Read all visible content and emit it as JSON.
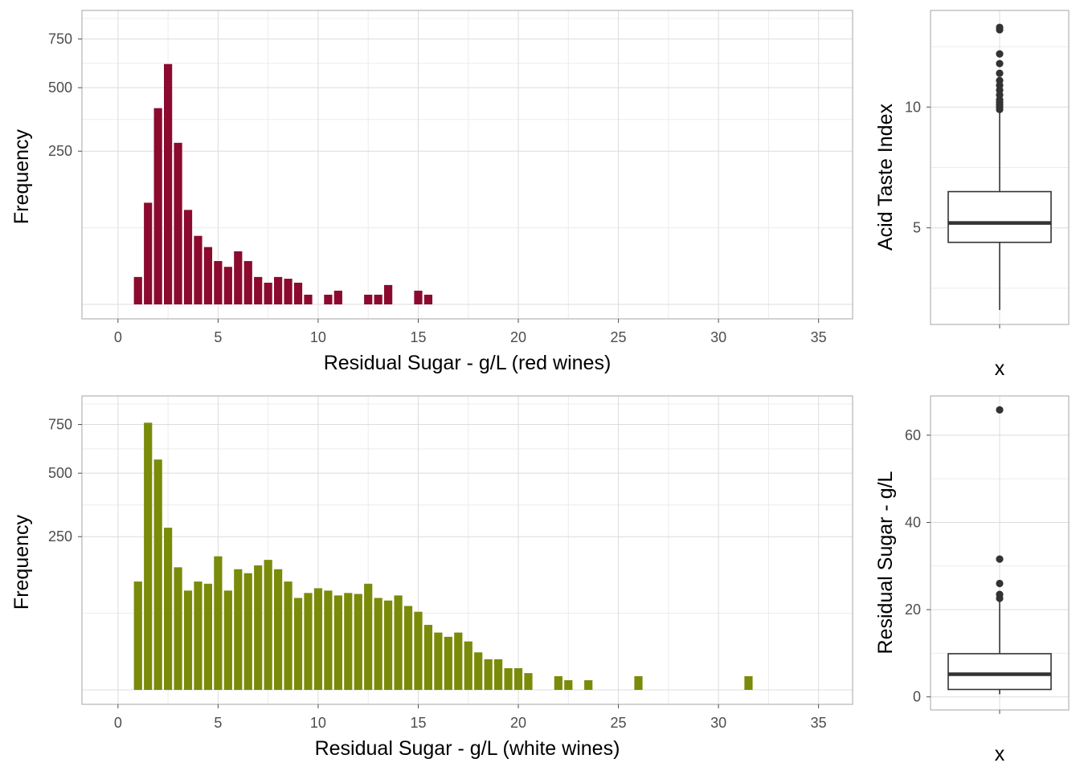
{
  "chart_data": [
    {
      "type": "bar",
      "panel": "top-left histogram",
      "xlabel": "Residual Sugar - g/L (red wines)",
      "ylabel": "Frequency",
      "y_scale": "sqrt",
      "xlim": [
        -1.8,
        36.7
      ],
      "ylim": [
        0,
        900
      ],
      "x_ticks": [
        0,
        5,
        10,
        15,
        20,
        25,
        30,
        35
      ],
      "y_ticks": [
        250,
        500,
        750
      ],
      "grid": true,
      "color": "#8B0A2E",
      "x": [
        1.0,
        1.5,
        2.0,
        2.5,
        3.0,
        3.5,
        4.0,
        4.5,
        5.0,
        5.5,
        6.0,
        6.5,
        7.0,
        7.5,
        8.0,
        8.5,
        9.0,
        9.5,
        10.5,
        11.0,
        12.5,
        13.0,
        13.5,
        15.0,
        15.5
      ],
      "values": [
        8,
        110,
        410,
        615,
        278,
        95,
        50,
        35,
        20,
        15,
        30,
        20,
        8,
        5,
        8,
        7,
        5,
        1,
        1,
        2,
        1,
        1,
        4,
        2,
        1
      ]
    },
    {
      "type": "bar",
      "panel": "bottom-left histogram",
      "xlabel": "Residual Sugar - g/L (white wines)",
      "ylabel": "Frequency",
      "y_scale": "sqrt",
      "xlim": [
        -1.8,
        36.7
      ],
      "ylim": [
        0,
        900
      ],
      "x_ticks": [
        0,
        5,
        10,
        15,
        20,
        25,
        30,
        35
      ],
      "y_ticks": [
        250,
        500,
        750
      ],
      "grid": true,
      "color": "#7A8B0A",
      "x": [
        1.0,
        1.5,
        2.0,
        2.5,
        3.0,
        3.5,
        4.0,
        4.5,
        5.0,
        5.5,
        6.0,
        6.5,
        7.0,
        7.5,
        8.0,
        8.5,
        9.0,
        9.5,
        10.0,
        10.5,
        11.0,
        11.5,
        12.0,
        12.5,
        13.0,
        13.5,
        14.0,
        14.5,
        15.0,
        15.5,
        16.0,
        16.5,
        17.0,
        17.5,
        18.0,
        18.5,
        19.0,
        19.5,
        20.0,
        20.5,
        22.0,
        22.5,
        23.5,
        26.0,
        31.5
      ],
      "values": [
        125,
        760,
        565,
        280,
        160,
        105,
        125,
        120,
        190,
        105,
        155,
        145,
        165,
        180,
        155,
        125,
        90,
        100,
        110,
        105,
        95,
        100,
        98,
        120,
        90,
        85,
        95,
        75,
        65,
        45,
        35,
        30,
        35,
        25,
        15,
        10,
        10,
        5,
        5,
        3,
        2,
        1,
        1,
        2,
        2
      ]
    },
    {
      "type": "boxplot",
      "panel": "top-right boxplot",
      "xlabel": "x",
      "ylabel": "Acid Taste Index",
      "ylim": [
        1,
        14
      ],
      "y_ticks": [
        5,
        10
      ],
      "grid": true,
      "lower_whisker": 1.6,
      "q1": 4.4,
      "median": 5.2,
      "q3": 6.5,
      "upper_whisker": 9.8,
      "outliers": [
        9.9,
        10.0,
        10.1,
        10.2,
        10.3,
        10.5,
        10.7,
        10.9,
        11.1,
        11.4,
        11.8,
        12.2,
        13.2,
        13.3
      ]
    },
    {
      "type": "boxplot",
      "panel": "bottom-right boxplot",
      "xlabel": "x",
      "ylabel": "Residual Sugar - g/L",
      "ylim": [
        -3,
        69
      ],
      "y_ticks": [
        0,
        20,
        40,
        60
      ],
      "grid": true,
      "lower_whisker": 0.6,
      "q1": 1.7,
      "median": 5.2,
      "q3": 9.9,
      "upper_whisker": 22.0,
      "outliers": [
        22.6,
        23.5,
        26.0,
        31.6,
        65.8
      ]
    }
  ]
}
